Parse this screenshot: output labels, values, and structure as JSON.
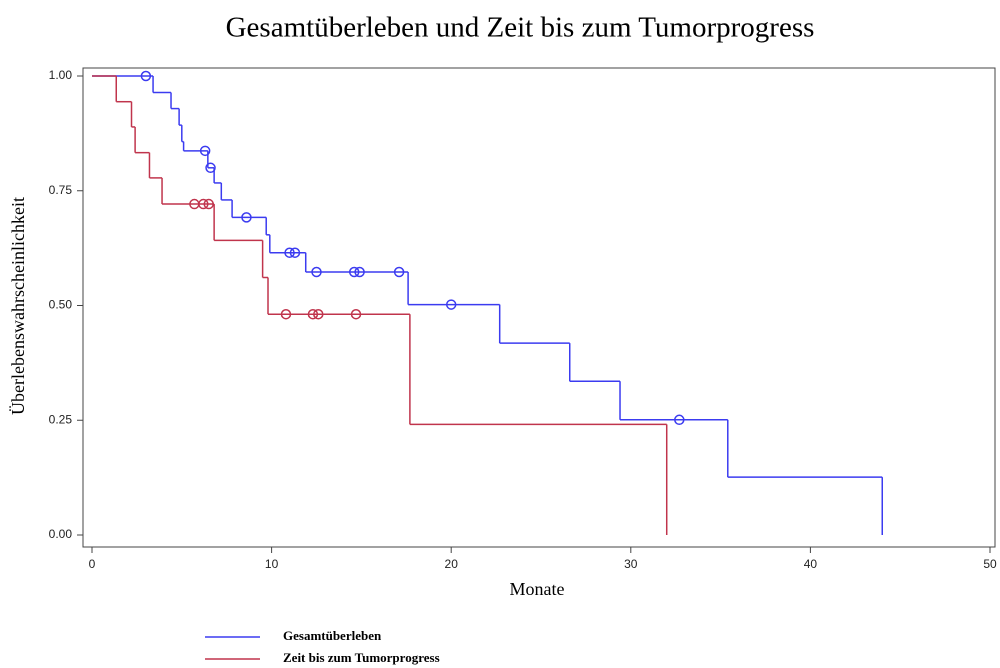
{
  "chart_data": {
    "type": "step",
    "title": "Gesamtüberleben und Zeit bis zum Tumorprogress",
    "x_label": "Monate",
    "y_label": "Überlebenswahrscheinlichkeit",
    "xlim": [
      0,
      50
    ],
    "xticks": [
      0,
      10,
      20,
      30,
      40,
      50
    ],
    "ylim": [
      0,
      1
    ],
    "yticks": [
      {
        "value": 0,
        "label": "0.00"
      },
      {
        "value": 0.25,
        "label": "0.25"
      },
      {
        "value": 0.5,
        "label": "0.50"
      },
      {
        "value": 0.75,
        "label": "0.75"
      },
      {
        "value": 1,
        "label": "1.00"
      }
    ],
    "series": [
      {
        "name": "Gesamtüberleben",
        "color": "#3b3bf0",
        "x": [
          0,
          3.4,
          4.4,
          4.85,
          5.0,
          5.1,
          6.45,
          6.8,
          7.2,
          7.8,
          9.7,
          9.9,
          11.9,
          17.6,
          22.7,
          26.6,
          29.4,
          35.4,
          44.0
        ],
        "values": [
          1.0,
          0.964,
          0.929,
          0.893,
          0.857,
          0.837,
          0.8,
          0.767,
          0.73,
          0.692,
          0.654,
          0.615,
          0.573,
          0.502,
          0.418,
          0.335,
          0.251,
          0.126,
          0
        ],
        "censored_x": [
          3.0,
          6.3,
          6.6,
          8.6,
          11.0,
          11.3,
          12.5,
          14.6,
          14.9,
          17.1,
          20.0,
          32.7
        ],
        "censored_y": [
          1.0,
          0.837,
          0.8,
          0.692,
          0.615,
          0.615,
          0.573,
          0.573,
          0.573,
          0.573,
          0.502,
          0.251
        ]
      },
      {
        "name": "Zeit bis zum Tumorprogress",
        "color": "#c0344c",
        "x": [
          0,
          1.35,
          2.2,
          2.4,
          3.2,
          3.9,
          6.8,
          9.5,
          9.8,
          17.7,
          32.0
        ],
        "values": [
          1.0,
          0.944,
          0.889,
          0.833,
          0.778,
          0.721,
          0.642,
          0.561,
          0.481,
          0.241,
          0
        ],
        "censored_x": [
          5.7,
          6.2,
          6.5,
          10.8,
          12.3,
          12.6,
          14.7
        ],
        "censored_y": [
          0.721,
          0.721,
          0.721,
          0.481,
          0.481,
          0.481,
          0.481
        ]
      }
    ]
  }
}
